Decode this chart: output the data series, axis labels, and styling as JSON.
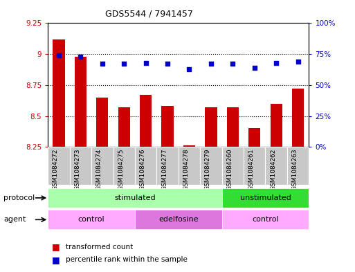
{
  "title": "GDS5544 / 7941457",
  "samples": [
    "GSM1084272",
    "GSM1084273",
    "GSM1084274",
    "GSM1084275",
    "GSM1084276",
    "GSM1084277",
    "GSM1084278",
    "GSM1084279",
    "GSM1084260",
    "GSM1084261",
    "GSM1084262",
    "GSM1084263"
  ],
  "bar_values": [
    9.12,
    8.98,
    8.65,
    8.57,
    8.67,
    8.58,
    8.26,
    8.57,
    8.57,
    8.4,
    8.6,
    8.72
  ],
  "dot_values": [
    74,
    73,
    67,
    67,
    68,
    67,
    63,
    67,
    67,
    64,
    68,
    69
  ],
  "ylim_left": [
    8.25,
    9.25
  ],
  "ylim_right": [
    0,
    100
  ],
  "yticks_left": [
    8.25,
    8.5,
    8.75,
    9.0,
    9.25
  ],
  "yticks_right": [
    0,
    25,
    50,
    75,
    100
  ],
  "ytick_labels_left": [
    "8.25",
    "8.5",
    "8.75",
    "9",
    "9.25"
  ],
  "ytick_labels_right": [
    "0%",
    "25%",
    "50%",
    "75%",
    "100%"
  ],
  "bar_color": "#cc0000",
  "dot_color": "#0000cc",
  "protocol_groups": [
    {
      "label": "stimulated",
      "start": 0,
      "end": 7,
      "color": "#aaffaa"
    },
    {
      "label": "unstimulated",
      "start": 8,
      "end": 11,
      "color": "#33dd33"
    }
  ],
  "agent_groups": [
    {
      "label": "control",
      "start": 0,
      "end": 3,
      "color": "#ffaaff"
    },
    {
      "label": "edelfosine",
      "start": 4,
      "end": 7,
      "color": "#dd77dd"
    },
    {
      "label": "control",
      "start": 8,
      "end": 11,
      "color": "#ffaaff"
    }
  ],
  "legend_bar_label": "transformed count",
  "legend_dot_label": "percentile rank within the sample",
  "protocol_label": "protocol",
  "agent_label": "agent",
  "bg_color": "#ffffff",
  "cell_bg_color": "#c8c8c8",
  "plot_bg_color": "#ffffff"
}
